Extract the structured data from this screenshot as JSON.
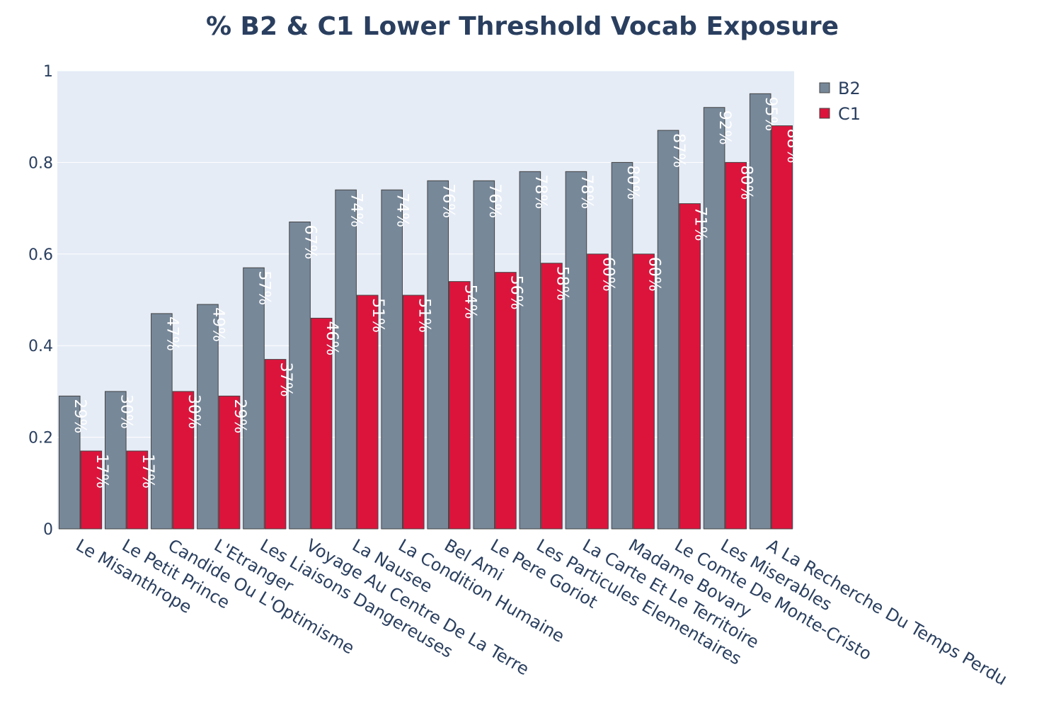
{
  "chart_data": {
    "type": "bar",
    "title": "% B2 & C1 Lower Threshold Vocab Exposure",
    "xlabel": "",
    "ylabel": "",
    "ylim": [
      0,
      1
    ],
    "yticks": [
      0,
      0.2,
      0.4,
      0.6,
      0.8,
      1
    ],
    "ytick_labels": [
      "0",
      "0.2",
      "0.4",
      "0.6",
      "0.8",
      "1"
    ],
    "grid": true,
    "legend_position": "top-right",
    "categories": [
      "Le Misanthrope",
      "Le Petit Prince",
      "Candide Ou L'Optimisme",
      "L'Etranger",
      "Les Liaisons Dangereuses",
      "Voyage Au Centre De La Terre",
      "La Nausee",
      "La Condition Humaine",
      "Bel Ami",
      "Le Pere Goriot",
      "Les Particules Elementaires",
      "La Carte Et Le Territoire",
      "Madame Bovary",
      "Le Comte De Monte-Cristo",
      "Les Miserables",
      "A La Recherche Du Temps Perdu"
    ],
    "series": [
      {
        "name": "B2",
        "color": "#778899",
        "values": [
          0.29,
          0.3,
          0.47,
          0.49,
          0.57,
          0.67,
          0.74,
          0.74,
          0.76,
          0.76,
          0.78,
          0.78,
          0.8,
          0.87,
          0.92,
          0.95
        ],
        "labels": [
          "29%",
          "30%",
          "47%",
          "49%",
          "57%",
          "67%",
          "74%",
          "74%",
          "76%",
          "76%",
          "78%",
          "78%",
          "80%",
          "87%",
          "92%",
          "95%"
        ]
      },
      {
        "name": "C1",
        "color": "#dc143c",
        "values": [
          0.17,
          0.17,
          0.3,
          0.29,
          0.37,
          0.46,
          0.51,
          0.51,
          0.54,
          0.56,
          0.58,
          0.6,
          0.6,
          0.71,
          0.8,
          0.88
        ],
        "labels": [
          "17%",
          "17%",
          "30%",
          "29%",
          "37%",
          "46%",
          "51%",
          "51%",
          "54%",
          "56%",
          "58%",
          "60%",
          "60%",
          "71%",
          "80%",
          "88%"
        ]
      }
    ]
  },
  "colors": {
    "plot_background": "#e5ecf6",
    "grid": "#ffffff",
    "text": "#2a3f5f"
  }
}
